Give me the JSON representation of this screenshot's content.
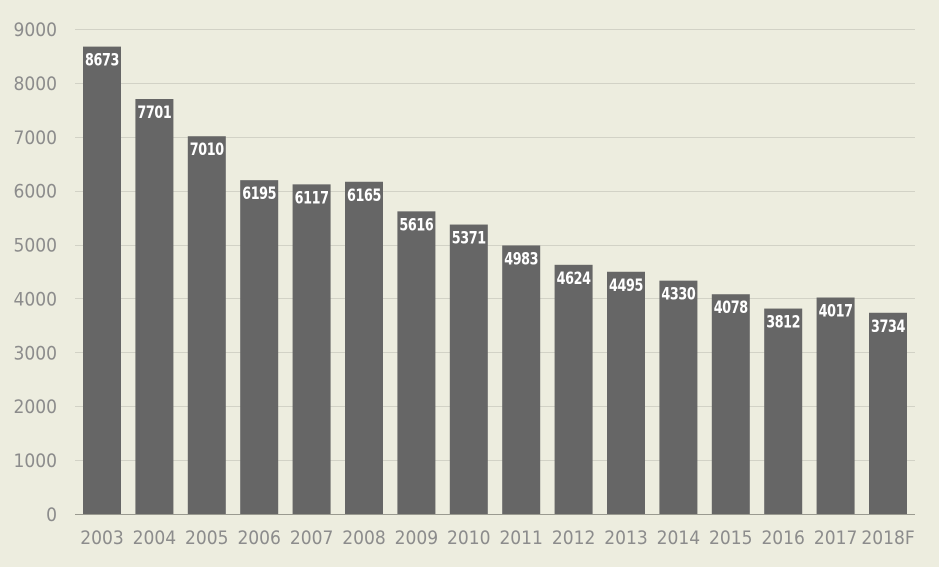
{
  "chart_data": {
    "type": "bar",
    "title": "",
    "xlabel": "",
    "ylabel": "",
    "categories": [
      "2003",
      "2004",
      "2005",
      "2006",
      "2007",
      "2008",
      "2009",
      "2010",
      "2011",
      "2012",
      "2013",
      "2014",
      "2015",
      "2016",
      "2017",
      "2018F"
    ],
    "values": [
      8673,
      7701,
      7010,
      6195,
      6117,
      6165,
      5616,
      5371,
      4983,
      4624,
      4495,
      4330,
      4078,
      3812,
      4017,
      3734
    ],
    "ylim": [
      0,
      9000
    ],
    "yticks": [
      0,
      1000,
      2000,
      3000,
      4000,
      5000,
      6000,
      7000,
      8000,
      9000
    ],
    "grid": true,
    "legend": "none",
    "data_labels": "inside-top",
    "colors": {
      "bar": "#666666",
      "background": "#ededdf",
      "grid": "#d2d2c6",
      "tick_text": "#8c8c8c",
      "value_text": "#ffffff"
    }
  }
}
